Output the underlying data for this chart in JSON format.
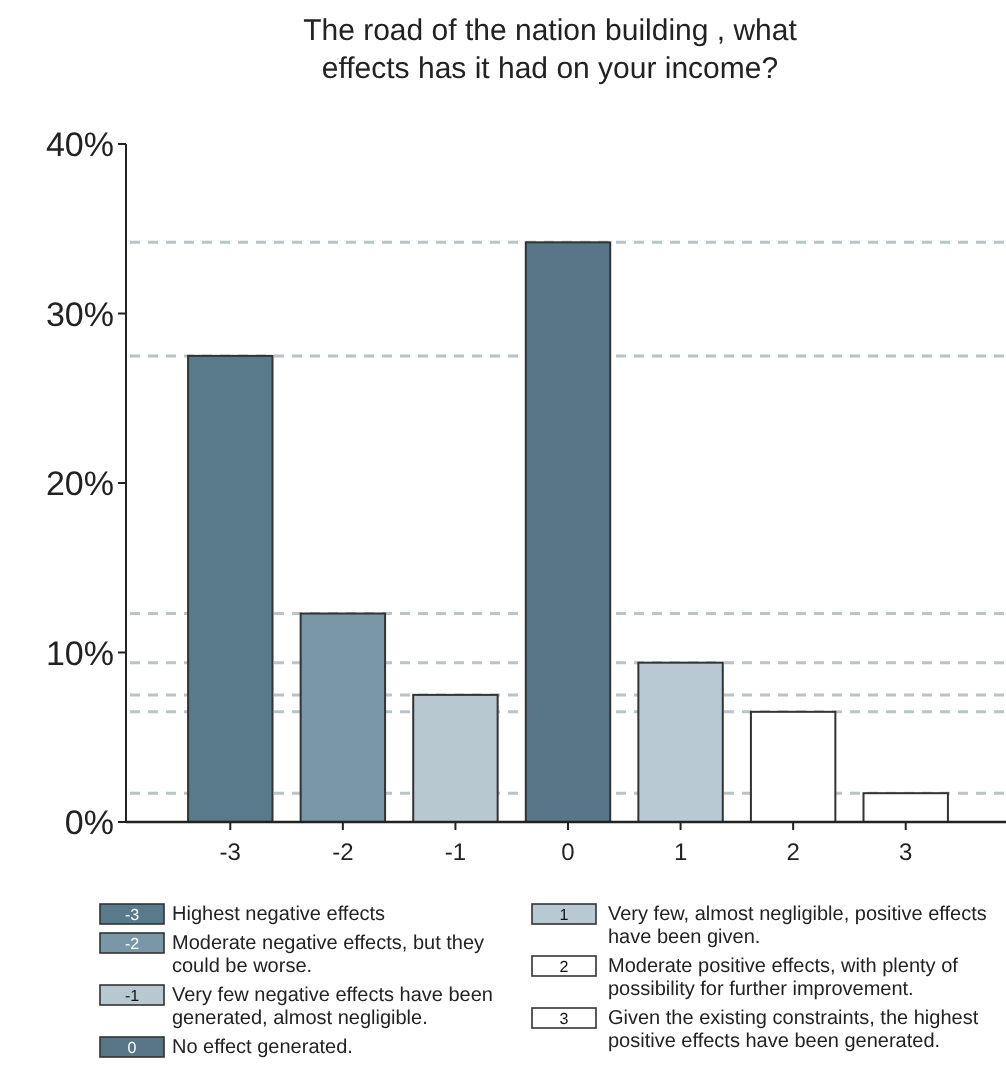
{
  "chart_data": {
    "type": "bar",
    "title": "The road of the nation building , what effects has it had on your income?",
    "categories": [
      "-3",
      "-2",
      "-1",
      "0",
      "1",
      "2",
      "3"
    ],
    "series": [
      {
        "name": "Highest negative effects",
        "color": "#587a8a",
        "values": [
          27.5,
          null,
          null,
          null,
          null,
          null,
          null
        ]
      },
      {
        "name": "Moderate negative effects, but they could be worse.",
        "color": "#7a97a8",
        "values": [
          null,
          12.3,
          null,
          null,
          null,
          null,
          null
        ]
      },
      {
        "name": "Very few negative effects have been generated, almost negligible.",
        "color": "#b8c8d1",
        "values": [
          null,
          null,
          7.5,
          null,
          null,
          null,
          null
        ]
      },
      {
        "name": "No effect generated.",
        "color": "#587688",
        "values": [
          null,
          null,
          null,
          34.2,
          null,
          null,
          null
        ]
      },
      {
        "name": "Very few, almost negligible, positive effects have been given.",
        "color": "#b8c9d3",
        "values": [
          null,
          null,
          null,
          null,
          9.4,
          null,
          null
        ]
      },
      {
        "name": "Moderate positive effects, with plenty of possibility for further improvement.",
        "color": "#ffffff",
        "values": [
          null,
          null,
          null,
          null,
          null,
          6.5,
          null
        ]
      },
      {
        "name": "Given the existing constraints, the highest positive effects have been generated.",
        "color": "#ffffff",
        "values": [
          null,
          null,
          null,
          null,
          null,
          null,
          1.7
        ]
      }
    ],
    "ylim": [
      0,
      40
    ],
    "yticks": [
      {
        "value": 0,
        "label": "0%"
      },
      {
        "value": 10,
        "label": "10%"
      },
      {
        "value": 20,
        "label": "20%"
      },
      {
        "value": 30,
        "label": "30%"
      },
      {
        "value": 40,
        "label": "40%"
      }
    ],
    "ref_lines": [
      {
        "axis": "y",
        "value": 27.5,
        "color": "#b8c4c8",
        "line_style": "dashed"
      },
      {
        "axis": "y",
        "value": 12.3,
        "color": "#b8c4c8",
        "line_style": "dashed"
      },
      {
        "axis": "y",
        "value": 7.5,
        "color": "#b8c4c8",
        "line_style": "dashed"
      },
      {
        "axis": "y",
        "value": 34.2,
        "color": "#b8c4c8",
        "line_style": "dashed"
      },
      {
        "axis": "y",
        "value": 9.4,
        "color": "#b8c4c8",
        "line_style": "dashed"
      },
      {
        "axis": "y",
        "value": 6.5,
        "color": "#b8c4c8",
        "line_style": "dashed"
      },
      {
        "axis": "y",
        "value": 1.7,
        "color": "#b8c4c8",
        "line_style": "dashed"
      }
    ],
    "legend": "bottom"
  }
}
